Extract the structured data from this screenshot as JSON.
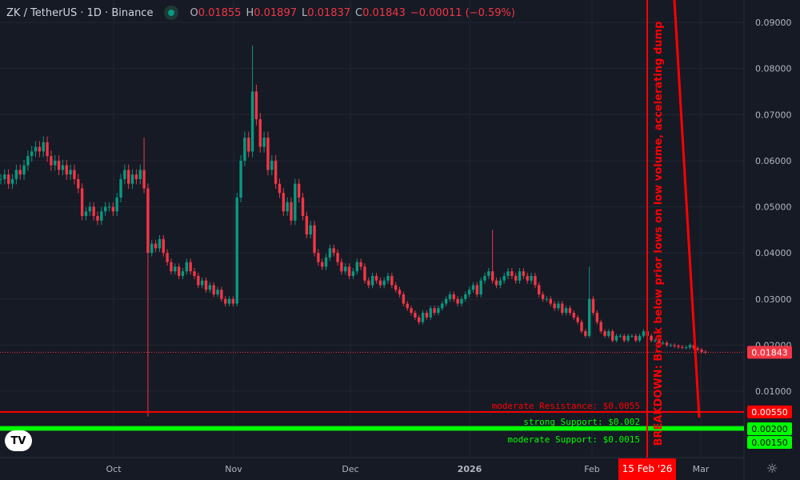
{
  "header": {
    "symbol": "ZK / TetherUS · 1D · Binance",
    "open_label": "O",
    "open": "0.01855",
    "high_label": "H",
    "high": "0.01897",
    "low_label": "L",
    "low": "0.01837",
    "close_label": "C",
    "close": "0.01843",
    "change": "−0.00011 (−0.59%)"
  },
  "colors": {
    "up": "#089981",
    "down": "#f23645",
    "annotation": "#ff0000",
    "support": "#00ff00",
    "background": "#161a25"
  },
  "price_axis": {
    "ticks": [
      "0.09000",
      "0.08000",
      "0.07000",
      "0.06000",
      "0.05000",
      "0.04000",
      "0.03000",
      "0.02000",
      "0.01000"
    ],
    "current_price": "0.01843",
    "resistance_tag": "0.00550",
    "support_tag_1": "0.00200",
    "support_tag_2": "0.00150"
  },
  "time_axis": {
    "ticks": [
      "Oct",
      "Nov",
      "Dec",
      "2026",
      "Feb",
      "Mar"
    ],
    "highlight": "15 Feb '26"
  },
  "annotations": {
    "breakdown": "BREAKDOWN: Break below prior lows on low volume, accelerating dump",
    "resistance": "moderate Resistance: $0.0055",
    "strong_support": "strong Support: $0.002",
    "moderate_support": "moderate Support: $0.0015"
  },
  "logo": "TV",
  "chart_data": {
    "type": "candlestick",
    "interval": "1D",
    "start": "2025-09-02",
    "ylim": [
      0,
      0.092
    ],
    "close": [
      0.056,
      0.057,
      0.055,
      0.056,
      0.058,
      0.057,
      0.059,
      0.061,
      0.062,
      0.063,
      0.062,
      0.064,
      0.061,
      0.059,
      0.06,
      0.058,
      0.059,
      0.057,
      0.058,
      0.056,
      0.054,
      0.048,
      0.049,
      0.05,
      0.048,
      0.047,
      0.049,
      0.05,
      0.05,
      0.049,
      0.052,
      0.056,
      0.058,
      0.055,
      0.057,
      0.056,
      0.058,
      0.054,
      0.04,
      0.042,
      0.041,
      0.043,
      0.04,
      0.038,
      0.036,
      0.037,
      0.035,
      0.036,
      0.038,
      0.036,
      0.035,
      0.033,
      0.034,
      0.032,
      0.033,
      0.031,
      0.032,
      0.03,
      0.029,
      0.03,
      0.029,
      0.052,
      0.06,
      0.065,
      0.062,
      0.075,
      0.069,
      0.063,
      0.065,
      0.058,
      0.06,
      0.055,
      0.053,
      0.049,
      0.051,
      0.047,
      0.055,
      0.052,
      0.048,
      0.044,
      0.046,
      0.04,
      0.038,
      0.037,
      0.039,
      0.041,
      0.04,
      0.038,
      0.036,
      0.037,
      0.035,
      0.036,
      0.038,
      0.037,
      0.034,
      0.033,
      0.035,
      0.034,
      0.033,
      0.034,
      0.035,
      0.033,
      0.032,
      0.031,
      0.029,
      0.028,
      0.027,
      0.026,
      0.025,
      0.027,
      0.026,
      0.028,
      0.027,
      0.028,
      0.029,
      0.03,
      0.031,
      0.03,
      0.029,
      0.03,
      0.031,
      0.032,
      0.033,
      0.031,
      0.034,
      0.035,
      0.036,
      0.034,
      0.033,
      0.034,
      0.035,
      0.036,
      0.035,
      0.034,
      0.036,
      0.035,
      0.034,
      0.035,
      0.033,
      0.031,
      0.03,
      0.03,
      0.029,
      0.028,
      0.029,
      0.027,
      0.028,
      0.027,
      0.026,
      0.025,
      0.023,
      0.022,
      0.03,
      0.027,
      0.025,
      0.023,
      0.022,
      0.023,
      0.021,
      0.022,
      0.022,
      0.021,
      0.022,
      0.022,
      0.021,
      0.022,
      0.023,
      0.022,
      0.021,
      0.021,
      0.0205,
      0.0205,
      0.02,
      0.02,
      0.0198,
      0.0196,
      0.0195,
      0.0195,
      0.02,
      0.0193,
      0.019,
      0.01855,
      0.01843
    ],
    "notable_wicks": [
      {
        "index": 37,
        "high": 0.065
      },
      {
        "index": 38,
        "low": 0.0045
      },
      {
        "index": 65,
        "high": 0.085
      },
      {
        "index": 127,
        "high": 0.045
      },
      {
        "index": 152,
        "high": 0.037
      }
    ]
  }
}
